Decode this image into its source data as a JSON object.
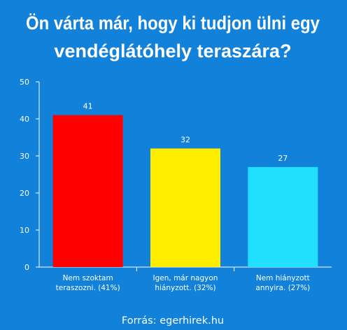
{
  "chart_data": {
    "type": "bar",
    "title_lines": [
      "Ön várta már, hogy ki tudjon ülni egy",
      "vendéglátóhely teraszára?"
    ],
    "categories": [
      [
        "Nem szoktam",
        "teraszozni. (41%)"
      ],
      [
        "Igen, már nagyon",
        "hiányzott. (32%)"
      ],
      [
        "Nem hiányzott",
        "annyira. (27%)"
      ]
    ],
    "values": [
      41,
      32,
      27
    ],
    "data_labels": [
      "41",
      "32",
      "27"
    ],
    "bar_colors": [
      "#ff0000",
      "#ffed00",
      "#21e0ff"
    ],
    "ylim": [
      0,
      50
    ],
    "yticks": [
      0,
      10,
      20,
      30,
      40,
      50
    ],
    "grid": false,
    "legend": "none"
  },
  "source": "Forrás: egerhirek.hu",
  "colors": {
    "background": "#1181da",
    "text": "#ffffff",
    "axis": "#ffffff"
  }
}
